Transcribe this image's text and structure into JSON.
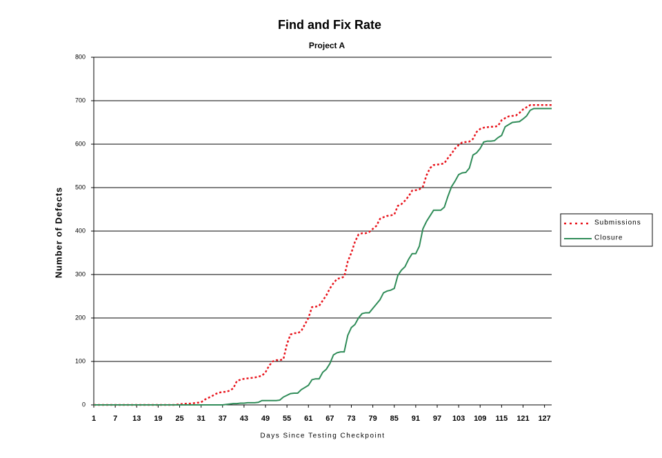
{
  "chart_data": {
    "type": "line",
    "title": "Find and Fix Rate",
    "subtitle": "Project A",
    "xlabel": "Days Since Testing Checkpoint",
    "ylabel": "Number of Defects",
    "x": [
      1,
      2,
      3,
      4,
      5,
      6,
      7,
      8,
      9,
      10,
      11,
      12,
      13,
      14,
      15,
      16,
      17,
      18,
      19,
      20,
      21,
      22,
      23,
      24,
      25,
      26,
      27,
      28,
      29,
      30,
      31,
      32,
      33,
      34,
      35,
      36,
      37,
      38,
      39,
      40,
      41,
      42,
      43,
      44,
      45,
      46,
      47,
      48,
      49,
      50,
      51,
      52,
      53,
      54,
      55,
      56,
      57,
      58,
      59,
      60,
      61,
      62,
      63,
      64,
      65,
      66,
      67,
      68,
      69,
      70,
      71,
      72,
      73,
      74,
      75,
      76,
      77,
      78,
      79,
      80,
      81,
      82,
      83,
      84,
      85,
      86,
      87,
      88,
      89,
      90,
      91,
      92,
      93,
      94,
      95,
      96,
      97,
      98,
      99,
      100,
      101,
      102,
      103,
      104,
      105,
      106,
      107,
      108,
      109,
      110,
      111,
      112,
      113,
      114,
      115,
      116,
      117,
      118,
      119,
      120,
      121,
      122,
      123,
      124,
      125,
      126,
      127,
      128,
      129
    ],
    "series": [
      {
        "name": "Submissions",
        "color": "#e8141c",
        "dash": true,
        "values": [
          0,
          0,
          0,
          0,
          0,
          0,
          0,
          0,
          0,
          0,
          0,
          0,
          0,
          0,
          0,
          0,
          0,
          0,
          0,
          0,
          0,
          0,
          0,
          0,
          2,
          2,
          3,
          3,
          4,
          5,
          6,
          12,
          16,
          20,
          25,
          28,
          30,
          30,
          33,
          38,
          55,
          58,
          60,
          61,
          62,
          63,
          65,
          67,
          75,
          90,
          100,
          103,
          103,
          105,
          140,
          162,
          165,
          165,
          170,
          185,
          200,
          225,
          226,
          228,
          240,
          252,
          268,
          280,
          290,
          292,
          295,
          330,
          350,
          375,
          392,
          395,
          395,
          398,
          405,
          412,
          428,
          432,
          435,
          436,
          438,
          458,
          462,
          470,
          480,
          493,
          494,
          496,
          502,
          528,
          545,
          552,
          553,
          554,
          556,
          568,
          578,
          590,
          598,
          604,
          605,
          606,
          612,
          628,
          635,
          638,
          639,
          640,
          640,
          642,
          655,
          660,
          664,
          665,
          666,
          672,
          680,
          685,
          690,
          690,
          690,
          690,
          690,
          690,
          690
        ]
      },
      {
        "name": "Closure",
        "color": "#2e8b57",
        "dash": false,
        "values": [
          0,
          0,
          0,
          0,
          0,
          0,
          0,
          0,
          0,
          0,
          0,
          0,
          0,
          0,
          0,
          0,
          0,
          0,
          0,
          0,
          0,
          0,
          0,
          0,
          0,
          0,
          0,
          0,
          0,
          0,
          0,
          0,
          0,
          0,
          0,
          0,
          0,
          1,
          2,
          3,
          3,
          4,
          4,
          5,
          5,
          5,
          6,
          10,
          10,
          10,
          10,
          10,
          11,
          18,
          22,
          26,
          27,
          27,
          35,
          40,
          45,
          58,
          60,
          60,
          75,
          82,
          95,
          115,
          120,
          122,
          122,
          160,
          178,
          185,
          200,
          210,
          212,
          212,
          222,
          232,
          242,
          258,
          262,
          264,
          268,
          298,
          310,
          318,
          335,
          348,
          348,
          365,
          405,
          422,
          435,
          448,
          448,
          448,
          455,
          480,
          502,
          515,
          530,
          534,
          535,
          545,
          575,
          580,
          590,
          605,
          607,
          607,
          608,
          615,
          620,
          640,
          645,
          650,
          651,
          652,
          658,
          665,
          678,
          682,
          682,
          682,
          682,
          682,
          682
        ]
      }
    ],
    "xlim": [
      1,
      129
    ],
    "xticks": [
      1,
      7,
      13,
      19,
      25,
      31,
      37,
      43,
      49,
      55,
      61,
      67,
      73,
      79,
      85,
      91,
      97,
      103,
      109,
      115,
      121,
      127
    ],
    "ylim": [
      0,
      800
    ],
    "yticks": [
      0,
      100,
      200,
      300,
      400,
      500,
      600,
      700,
      800
    ],
    "grid": true,
    "legend": "right"
  }
}
